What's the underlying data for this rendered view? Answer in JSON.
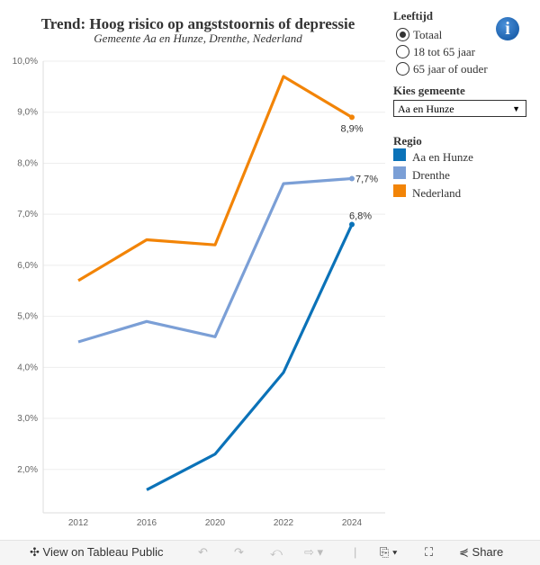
{
  "title": "Trend: Hoog risico op angststoornis of depressie",
  "subtitle": "Gemeente Aa en Hunze, Drenthe, Nederland",
  "filters": {
    "leeftijd_label": "Leeftijd",
    "options": [
      {
        "label": "Totaal",
        "selected": true
      },
      {
        "label": "18 tot 65 jaar",
        "selected": false
      },
      {
        "label": "65 jaar of ouder",
        "selected": false
      }
    ],
    "gemeente_label": "Kies gemeente",
    "gemeente_value": "Aa en Hunze"
  },
  "legend": {
    "title": "Regio",
    "items": [
      {
        "label": "Aa en Hunze",
        "color": "#0b72b8"
      },
      {
        "label": "Drenthe",
        "color": "#7b9fd6"
      },
      {
        "label": "Nederland",
        "color": "#f28407"
      }
    ]
  },
  "info_icon": "info-icon",
  "chart_data": {
    "type": "line",
    "categories": [
      "2012",
      "2016",
      "2020",
      "2022",
      "2024"
    ],
    "yticks": [
      "2,0%",
      "3,0%",
      "4,0%",
      "5,0%",
      "6,0%",
      "7,0%",
      "8,0%",
      "9,0%",
      "10,0%"
    ],
    "ylim": [
      1.15,
      10.0
    ],
    "grid": true,
    "series": [
      {
        "name": "Nederland",
        "color": "#f28407",
        "values": [
          5.7,
          6.5,
          6.4,
          9.7,
          8.9
        ],
        "end_label": "8,9%"
      },
      {
        "name": "Drenthe",
        "color": "#7b9fd6",
        "values": [
          4.5,
          4.9,
          4.6,
          7.6,
          7.7
        ],
        "end_label": "7,7%"
      },
      {
        "name": "Aa en Hunze",
        "color": "#0b72b8",
        "values": [
          null,
          1.6,
          2.3,
          3.9,
          6.8
        ],
        "end_label": "6,8%"
      }
    ]
  },
  "footer": {
    "view": "View on Tableau Public",
    "share": "Share"
  }
}
